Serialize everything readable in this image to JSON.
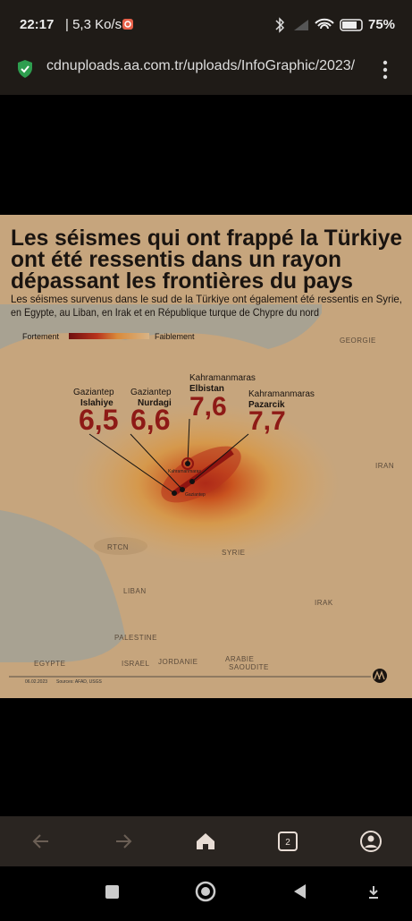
{
  "status_bar": {
    "time": "22:17",
    "speed": "| 5,3 Ko/s",
    "battery": "75%"
  },
  "url_bar": {
    "url": "cdnuploads.aa.com.tr/uploads/InfoGraphic/2023/"
  },
  "infographic": {
    "title": [
      "Les séismes qui ont frappé la Türkiye",
      "ont été ressentis dans un rayon",
      "dépassant les frontières du pays"
    ],
    "subtitle": [
      "Les séismes survenus dans le sud de la Türkiye ont également été ressentis en Syrie,",
      "en Egypte, au Liban, en Irak et en République turque de Chypre du nord"
    ],
    "legend": {
      "strong": "Fortement",
      "weak": "Faiblement"
    },
    "quakes": [
      {
        "province": "Gaziantep",
        "district": "Islahiye",
        "magnitude": "6,5"
      },
      {
        "province": "Gaziantep",
        "district": "Nurdagi",
        "magnitude": "6,6"
      },
      {
        "province": "Kahramanmaras",
        "district": "Elbistan",
        "magnitude": "7,6"
      },
      {
        "province": "Kahramanmaras",
        "district": "Pazarcik",
        "magnitude": "7,7"
      }
    ],
    "city_labels": [
      "Kahramanmaras",
      "Gaziantep"
    ],
    "countries": [
      "GEORGIE",
      "IRAN",
      "RTCN",
      "SYRIE",
      "LIBAN",
      "IRAK",
      "PALESTINE",
      "ISRAEL",
      "JORDANIE",
      "ARABIE",
      "SAOUDITE",
      "EGYPTE"
    ],
    "date": "06.02.2023",
    "sources": "Sources: AFAD, USGS"
  },
  "tabs_count": "2"
}
